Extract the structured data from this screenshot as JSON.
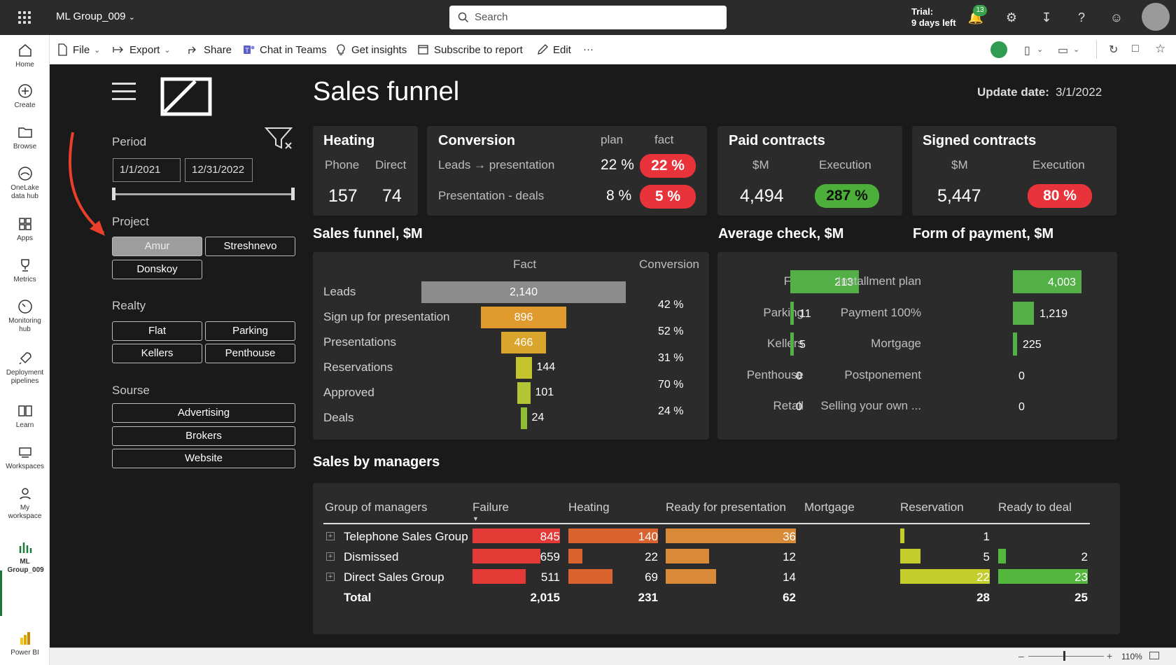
{
  "topbar": {
    "workspace": "ML Group_009",
    "search_placeholder": "Search",
    "trial_line1": "Trial:",
    "trial_line2": "9 days left",
    "notif_count": "13"
  },
  "leftnav": [
    {
      "label": "Home"
    },
    {
      "label": "Create"
    },
    {
      "label": "Browse"
    },
    {
      "label": "OneLake data hub"
    },
    {
      "label": "Apps"
    },
    {
      "label": "Metrics"
    },
    {
      "label": "Monitoring hub"
    },
    {
      "label": "Deployment pipelines"
    },
    {
      "label": "Learn"
    },
    {
      "label": "Workspaces"
    },
    {
      "label": "My workspace"
    },
    {
      "label": "ML Group_009"
    },
    {
      "label": "Power BI"
    }
  ],
  "actions": {
    "file": "File",
    "export": "Export",
    "share": "Share",
    "chat": "Chat in Teams",
    "insights": "Get insights",
    "subscribe": "Subscribe to report",
    "edit": "Edit",
    "more": "···"
  },
  "report": {
    "title": "Sales funnel",
    "update_label": "Update date:",
    "update_value": "3/1/2022"
  },
  "filters": {
    "period_label": "Period",
    "start_date": "1/1/2021",
    "end_date": "12/31/2022",
    "project_label": "Project",
    "projects": [
      "Amur",
      "Streshnevo",
      "Donskoy"
    ],
    "realty_label": "Realty",
    "realty": [
      "Flat",
      "Parking",
      "Kellers",
      "Penthouse"
    ],
    "source_label": "Sourse",
    "sources": [
      "Advertising",
      "Brokers",
      "Website"
    ]
  },
  "kpi": {
    "heating": {
      "title": "Heating",
      "col1": "Phone",
      "col2": "Direct",
      "v1": "157",
      "v2": "74"
    },
    "conversion": {
      "title": "Conversion",
      "plan": "plan",
      "fact": "fact",
      "row1_label": "Leads → presentation",
      "row1_plan": "22 %",
      "row1_fact": "22 %",
      "row2_label": "Presentation - deals",
      "row2_plan": "8 %",
      "row2_fact": "5 %"
    },
    "paid": {
      "title": "Paid contracts",
      "col1": "$M",
      "col2": "Execution",
      "value": "4,494",
      "execution": "287 %"
    },
    "signed": {
      "title": "Signed contracts",
      "col1": "$M",
      "col2": "Execution",
      "value": "5,447",
      "execution": "80 %"
    }
  },
  "funnel": {
    "title": "Sales funnel, $M",
    "fact_header": "Fact",
    "conv_header": "Conversion",
    "stages": [
      {
        "label": "Leads",
        "value": 2140,
        "display": "2,140",
        "color": "#8c8c8c"
      },
      {
        "label": "Sign up for presentation",
        "value": 896,
        "display": "896",
        "color": "#e09a2e"
      },
      {
        "label": "Presentations",
        "value": 466,
        "display": "466",
        "color": "#d9a52c"
      },
      {
        "label": "Reservations",
        "value": 144,
        "display": "144",
        "color": "#c4c32e"
      },
      {
        "label": "Approved",
        "value": 101,
        "display": "101",
        "color": "#b3c534"
      },
      {
        "label": "Deals",
        "value": 24,
        "display": "24",
        "color": "#8ebd35"
      }
    ],
    "conversions": [
      "42 %",
      "52 %",
      "31 %",
      "70 %",
      "24 %"
    ]
  },
  "avg_check": {
    "title": "Average check, $M",
    "items": [
      {
        "label": "Flat",
        "value": 213,
        "display": "213"
      },
      {
        "label": "Parking",
        "value": 11,
        "display": "11"
      },
      {
        "label": "Kellers",
        "value": 5,
        "display": "5"
      },
      {
        "label": "Penthouse",
        "value": 0,
        "display": "0"
      },
      {
        "label": "Retail",
        "value": 0,
        "display": "0"
      }
    ]
  },
  "payment": {
    "title": "Form of payment, $M",
    "items": [
      {
        "label": "Installment plan",
        "value": 4003,
        "display": "4,003"
      },
      {
        "label": "Payment 100%",
        "value": 1219,
        "display": "1,219"
      },
      {
        "label": "Mortgage",
        "value": 225,
        "display": "225"
      },
      {
        "label": "Postponement",
        "value": 0,
        "display": "0"
      },
      {
        "label": "Selling your own ...",
        "value": 0,
        "display": "0"
      }
    ]
  },
  "managers": {
    "title": "Sales by managers",
    "headers": [
      "Group of managers",
      "Failure",
      "Heating",
      "Ready for presentation",
      "Mortgage",
      "Reservation",
      "Ready to deal"
    ],
    "rows": [
      {
        "name": "Telephone Sales Group",
        "failure": 845,
        "heating": 140,
        "ready": 36,
        "mortgage": "",
        "reservation": 1,
        "deal": ""
      },
      {
        "name": "Dismissed",
        "failure": 659,
        "heating": 22,
        "ready": 12,
        "mortgage": "",
        "reservation": 5,
        "deal": 2
      },
      {
        "name": "Direct Sales Group",
        "failure": 511,
        "heating": 69,
        "ready": 14,
        "mortgage": "",
        "reservation": 22,
        "deal": 23
      }
    ],
    "total": {
      "name": "Total",
      "failure": "2,015",
      "heating": "231",
      "ready": "62",
      "reservation": "28",
      "deal": "25"
    }
  },
  "statusbar": {
    "zoom": "110%"
  }
}
